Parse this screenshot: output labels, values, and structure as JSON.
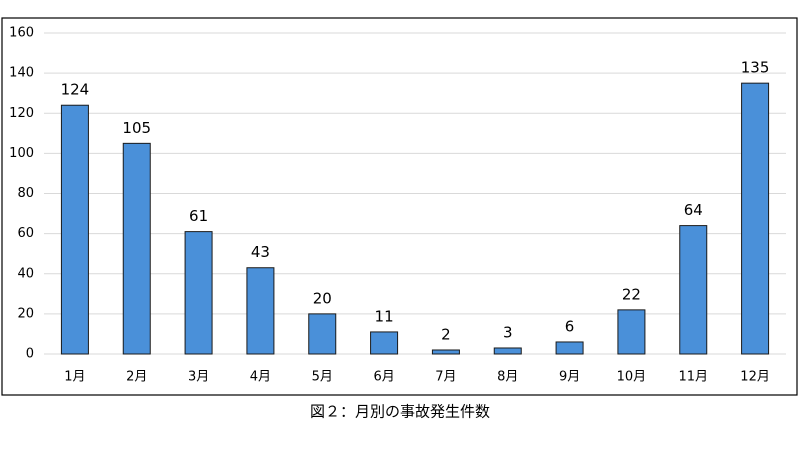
{
  "chart_data": {
    "type": "bar",
    "title": "図２：月別の事故発生件数",
    "categories": [
      "1月",
      "2月",
      "3月",
      "4月",
      "5月",
      "6月",
      "7月",
      "8月",
      "9月",
      "10月",
      "11月",
      "12月"
    ],
    "values": [
      124,
      105,
      61,
      43,
      20,
      11,
      2,
      3,
      6,
      22,
      64,
      135
    ],
    "color": "#4a90d9",
    "ylim": [
      0,
      160
    ],
    "yticks": [
      0,
      20,
      40,
      60,
      80,
      100,
      120,
      140,
      160
    ],
    "grid": true
  }
}
